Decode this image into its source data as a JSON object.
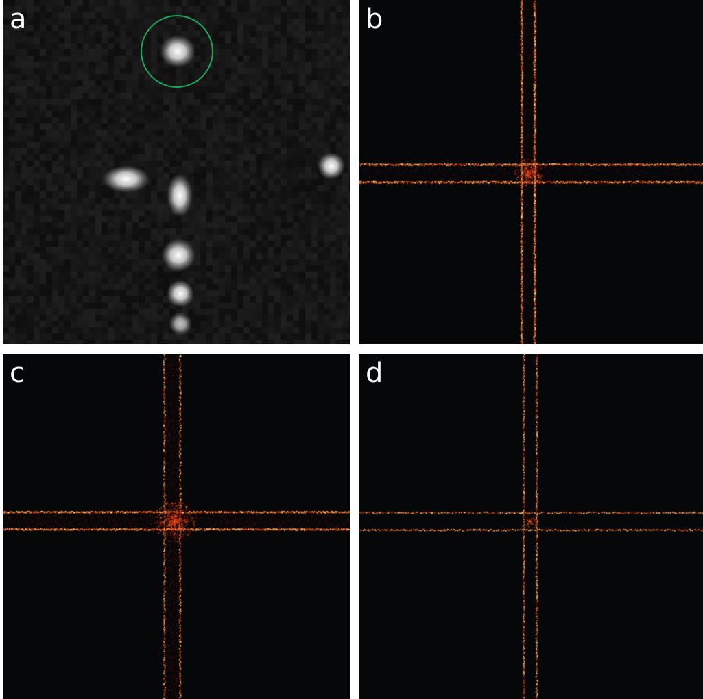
{
  "panels": [
    {
      "id": "a",
      "label": "a"
    },
    {
      "id": "b",
      "label": "b"
    },
    {
      "id": "c",
      "label": "c"
    },
    {
      "id": "d",
      "label": "d"
    }
  ],
  "colors": {
    "background": "#ffffff",
    "panel_dark": "#060708",
    "microscopy_bg": "#141414",
    "spot": "#f2f2f2",
    "highlight_circle": "#1aa85a",
    "streak_core": "#ffd77a",
    "streak_mid": "#ff5a1a",
    "streak_edge": "#a5140c",
    "label": "#ffffff"
  }
}
